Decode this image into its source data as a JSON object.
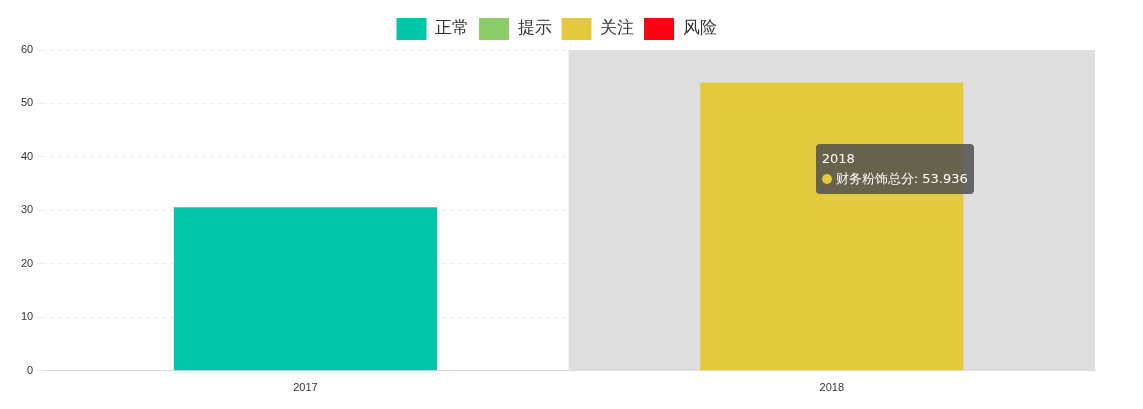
{
  "chart_data": {
    "type": "bar",
    "categories": [
      "2017",
      "2018"
    ],
    "stacked": true,
    "series": [
      {
        "name": "正常",
        "color": "#00c5a8",
        "values": [
          30.6,
          null
        ]
      },
      {
        "name": "提示",
        "color": "#8ccc68",
        "values": [
          null,
          null
        ]
      },
      {
        "name": "关注",
        "color": "#e3c93b",
        "values": [
          null,
          53.936
        ]
      },
      {
        "name": "风险",
        "color": "#ff0012",
        "values": [
          null,
          null
        ]
      }
    ],
    "ylim": [
      0,
      60
    ],
    "yticks": [
      0,
      10,
      20,
      30,
      40,
      50,
      60
    ],
    "grid": "y",
    "legend": "top",
    "bands": [
      {
        "axis": "x",
        "from": "2018",
        "to": "2018",
        "color": "#dedede"
      }
    ],
    "annotations": [
      "2018",
      "财务粉饰总分: 53.936"
    ]
  }
}
